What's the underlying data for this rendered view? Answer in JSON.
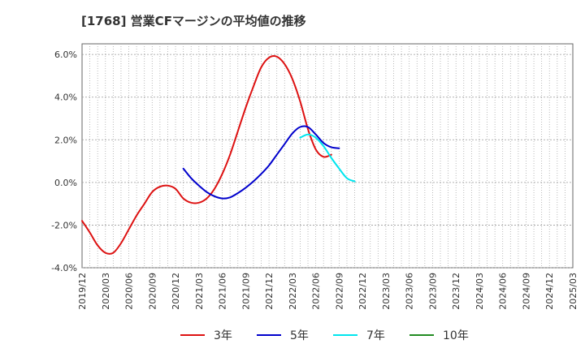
{
  "chart_data": {
    "type": "line",
    "title": "[1768]  営業CFマージンの平均値の推移",
    "xlabel": "",
    "ylabel": "",
    "x_ticks": [
      "2019/12",
      "2020/03",
      "2020/06",
      "2020/09",
      "2020/12",
      "2021/03",
      "2021/06",
      "2021/09",
      "2021/12",
      "2022/03",
      "2022/06",
      "2022/09",
      "2022/12",
      "2023/03",
      "2023/06",
      "2023/09",
      "2023/12",
      "2024/03",
      "2024/06",
      "2024/09",
      "2024/12",
      "2025/03"
    ],
    "y_ticks": [
      "-4.0%",
      "-2.0%",
      "0.0%",
      "2.0%",
      "4.0%",
      "6.0%"
    ],
    "ylim": [
      -4.0,
      6.5
    ],
    "grid": true,
    "legend_position": "bottom",
    "series": [
      {
        "name": "3年",
        "color": "#dd1111",
        "values": [
          -1.8,
          -2.35,
          -2.95,
          -3.3,
          -3.3,
          -2.85,
          -2.2,
          -1.55,
          -1.0,
          -0.45,
          -0.2,
          -0.15,
          -0.3,
          -0.75,
          -0.95,
          -0.95,
          -0.75,
          -0.3,
          0.4,
          1.3,
          2.4,
          3.5,
          4.5,
          5.4,
          5.85,
          5.9,
          5.55,
          4.85,
          3.8,
          2.5,
          1.55,
          1.2,
          1.3
        ]
      },
      {
        "name": "5年",
        "color": "#0000cc",
        "values": [
          null,
          null,
          null,
          null,
          null,
          null,
          null,
          null,
          null,
          null,
          null,
          null,
          null,
          0.65,
          0.2,
          -0.15,
          -0.45,
          -0.65,
          -0.75,
          -0.7,
          -0.5,
          -0.25,
          0.05,
          0.4,
          0.8,
          1.3,
          1.8,
          2.3,
          2.6,
          2.6,
          2.25,
          1.85,
          1.65,
          1.6
        ]
      },
      {
        "name": "7年",
        "color": "#00e5ee",
        "values": [
          null,
          null,
          null,
          null,
          null,
          null,
          null,
          null,
          null,
          null,
          null,
          null,
          null,
          null,
          null,
          null,
          null,
          null,
          null,
          null,
          null,
          null,
          null,
          null,
          null,
          null,
          null,
          null,
          2.1,
          2.25,
          2.1,
          1.7,
          1.15,
          0.65,
          0.2,
          0.05
        ]
      },
      {
        "name": "10年",
        "color": "#228b22",
        "values": []
      }
    ]
  }
}
